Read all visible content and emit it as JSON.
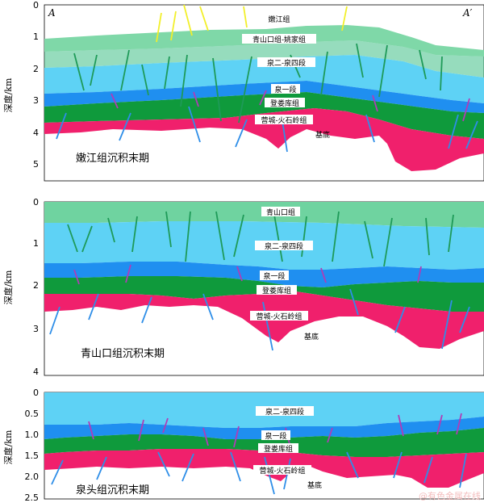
{
  "colors": {
    "nenjiang": "#7ad6a4",
    "qingshankou": "#6fd3a0",
    "quan2_4": "#5ed2f5",
    "quan1": "#1f8ff0",
    "denglouku": "#0f9a3c",
    "yingcheng": "#f0206c",
    "basement": "#ffffff",
    "fault_yellow": "#f2ef2a",
    "fault_green": "#1e9a58",
    "fault_purple": "#b03cb8",
    "fault_blue": "#2e8ee8"
  },
  "panels": [
    {
      "title": "嫩江组沉积末期",
      "y_axis_label": "深度/km",
      "y_ticks": [
        "0",
        "1",
        "2",
        "3",
        "4",
        "5"
      ],
      "corner_left": "A",
      "corner_right": "A′",
      "layers": [
        "嫩江组",
        "青山口组-姚家组",
        "泉二-泉四段",
        "泉一段",
        "登娄库组",
        "营城-火石岭组",
        "基底"
      ]
    },
    {
      "title": "青山口组沉积末期",
      "y_axis_label": "深度/km",
      "y_ticks": [
        "0",
        "1",
        "2",
        "3",
        "4"
      ],
      "layers": [
        "青山口组",
        "泉二-泉四段",
        "泉一段",
        "登娄库组",
        "营城-火石岭组",
        "基底"
      ]
    },
    {
      "title": "泉头组沉积末期",
      "y_axis_label": "深度/km",
      "y_ticks": [
        "0",
        "0.5",
        "1.0",
        "1.5",
        "2.0",
        "2.5"
      ],
      "layers": [
        "泉二-泉四段",
        "泉一段",
        "登娄库组",
        "营城-火石岭组",
        "基底"
      ]
    }
  ],
  "watermark": "@有色金属在线"
}
